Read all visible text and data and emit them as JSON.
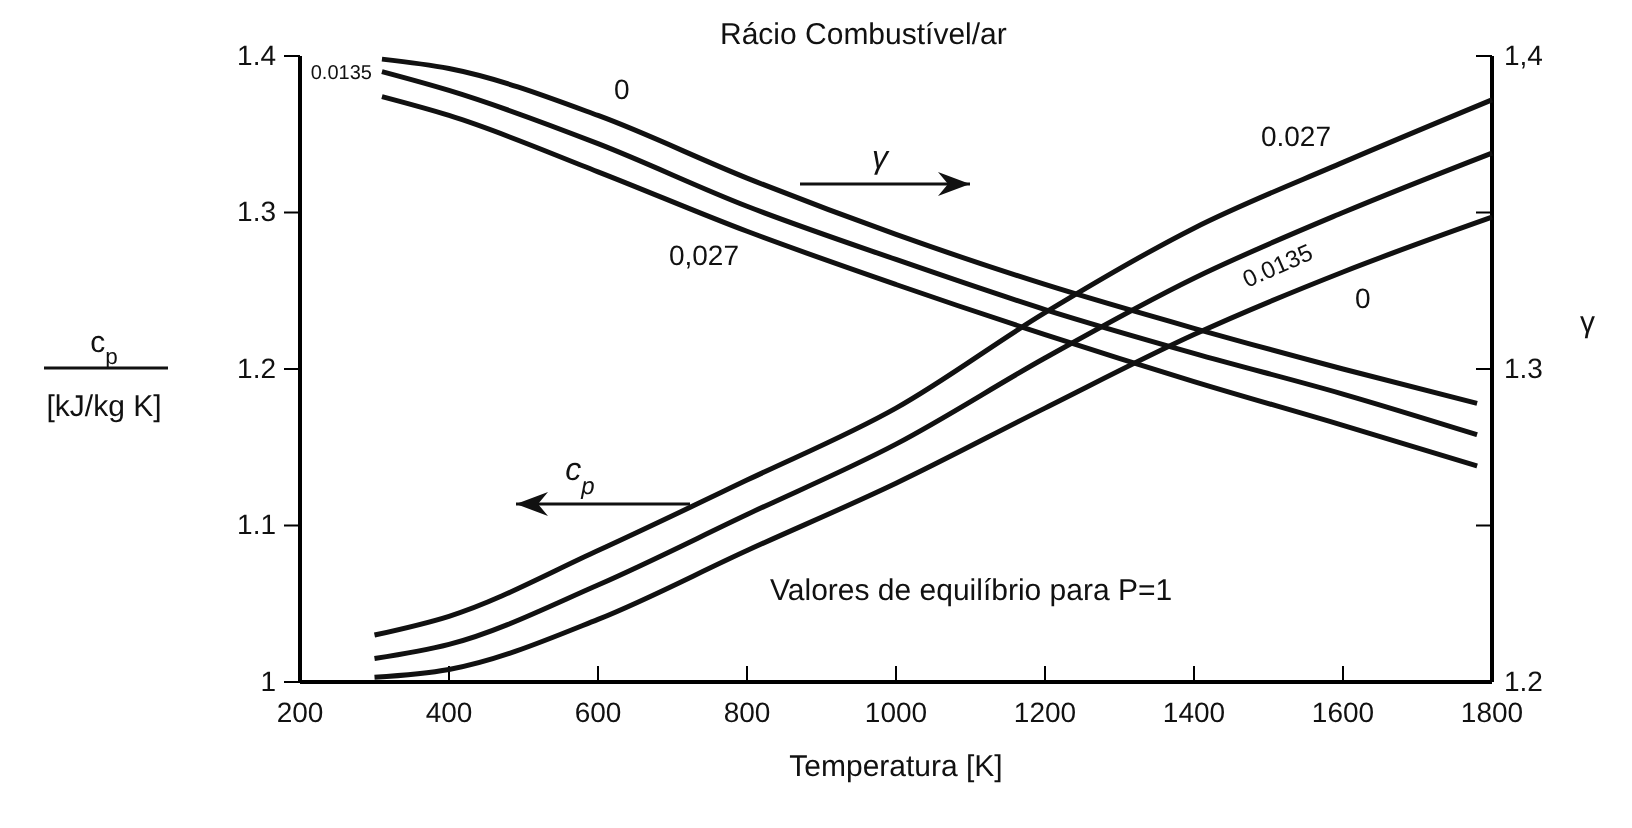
{
  "chart_data": {
    "type": "line",
    "xlabel": "Temperatura [K]",
    "ylabel": "c$_{p}$ [kJ/kg K]",
    "y2label": "γ",
    "xlim": [
      200,
      1800
    ],
    "xticks": [
      200,
      400,
      600,
      800,
      1000,
      1200,
      1400,
      1600,
      1800
    ],
    "ylim": [
      1.0,
      1.4
    ],
    "yticks": [
      1.0,
      1.1,
      1.2,
      1.3,
      1.4
    ],
    "y2lim": [
      1.2,
      1.4
    ],
    "y2ticks": [
      1.2,
      {
        "value": 1.25,
        "label": null
      },
      1.3,
      {
        "value": 1.35,
        "label": null
      },
      {
        "value": 1.4,
        "label": "1,4"
      }
    ],
    "grid": false,
    "marker": "none",
    "line_style": "solid",
    "series": [
      {
        "name": "0",
        "axis": "y2",
        "color": "#111111",
        "x": [
          310,
          400,
          600,
          800,
          1000,
          1200,
          1400,
          1600,
          1780
        ],
        "values": [
          1.399,
          1.396,
          1.381,
          1.361,
          1.343,
          1.327,
          1.313,
          1.3,
          1.289
        ]
      },
      {
        "name": "0.0135",
        "axis": "y2",
        "color": "#111111",
        "x": [
          310,
          400,
          600,
          800,
          1000,
          1200,
          1400,
          1600,
          1780
        ],
        "values": [
          1.395,
          1.389,
          1.372,
          1.352,
          1.335,
          1.319,
          1.305,
          1.292,
          1.279
        ]
      },
      {
        "name": "0,027",
        "axis": "y2",
        "color": "#111111",
        "x": [
          310,
          400,
          600,
          800,
          1000,
          1200,
          1400,
          1600,
          1780
        ],
        "values": [
          1.387,
          1.381,
          1.363,
          1.344,
          1.327,
          1.311,
          1.296,
          1.282,
          1.269
        ]
      },
      {
        "name": "0.027",
        "color": "#111111",
        "x": [
          300,
          400,
          600,
          800,
          1000,
          1200,
          1400,
          1600,
          1800
        ],
        "values": [
          1.03,
          1.042,
          1.084,
          1.129,
          1.175,
          1.236,
          1.29,
          1.332,
          1.372
        ]
      },
      {
        "name": "0.0135",
        "color": "#111111",
        "x": [
          300,
          400,
          600,
          800,
          1000,
          1200,
          1400,
          1600,
          1800
        ],
        "values": [
          1.015,
          1.024,
          1.062,
          1.107,
          1.152,
          1.207,
          1.258,
          1.3,
          1.338
        ]
      },
      {
        "name": "0",
        "color": "#111111",
        "x": [
          300,
          400,
          600,
          800,
          1000,
          1200,
          1400,
          1600,
          1800
        ],
        "values": [
          1.003,
          1.008,
          1.04,
          1.084,
          1.127,
          1.175,
          1.222,
          1.262,
          1.297
        ]
      }
    ],
    "annotations": [
      "Rácio Combustível/ar",
      "γ",
      "c$_{p}$",
      "Valores de equilíbrio para P=1"
    ]
  }
}
